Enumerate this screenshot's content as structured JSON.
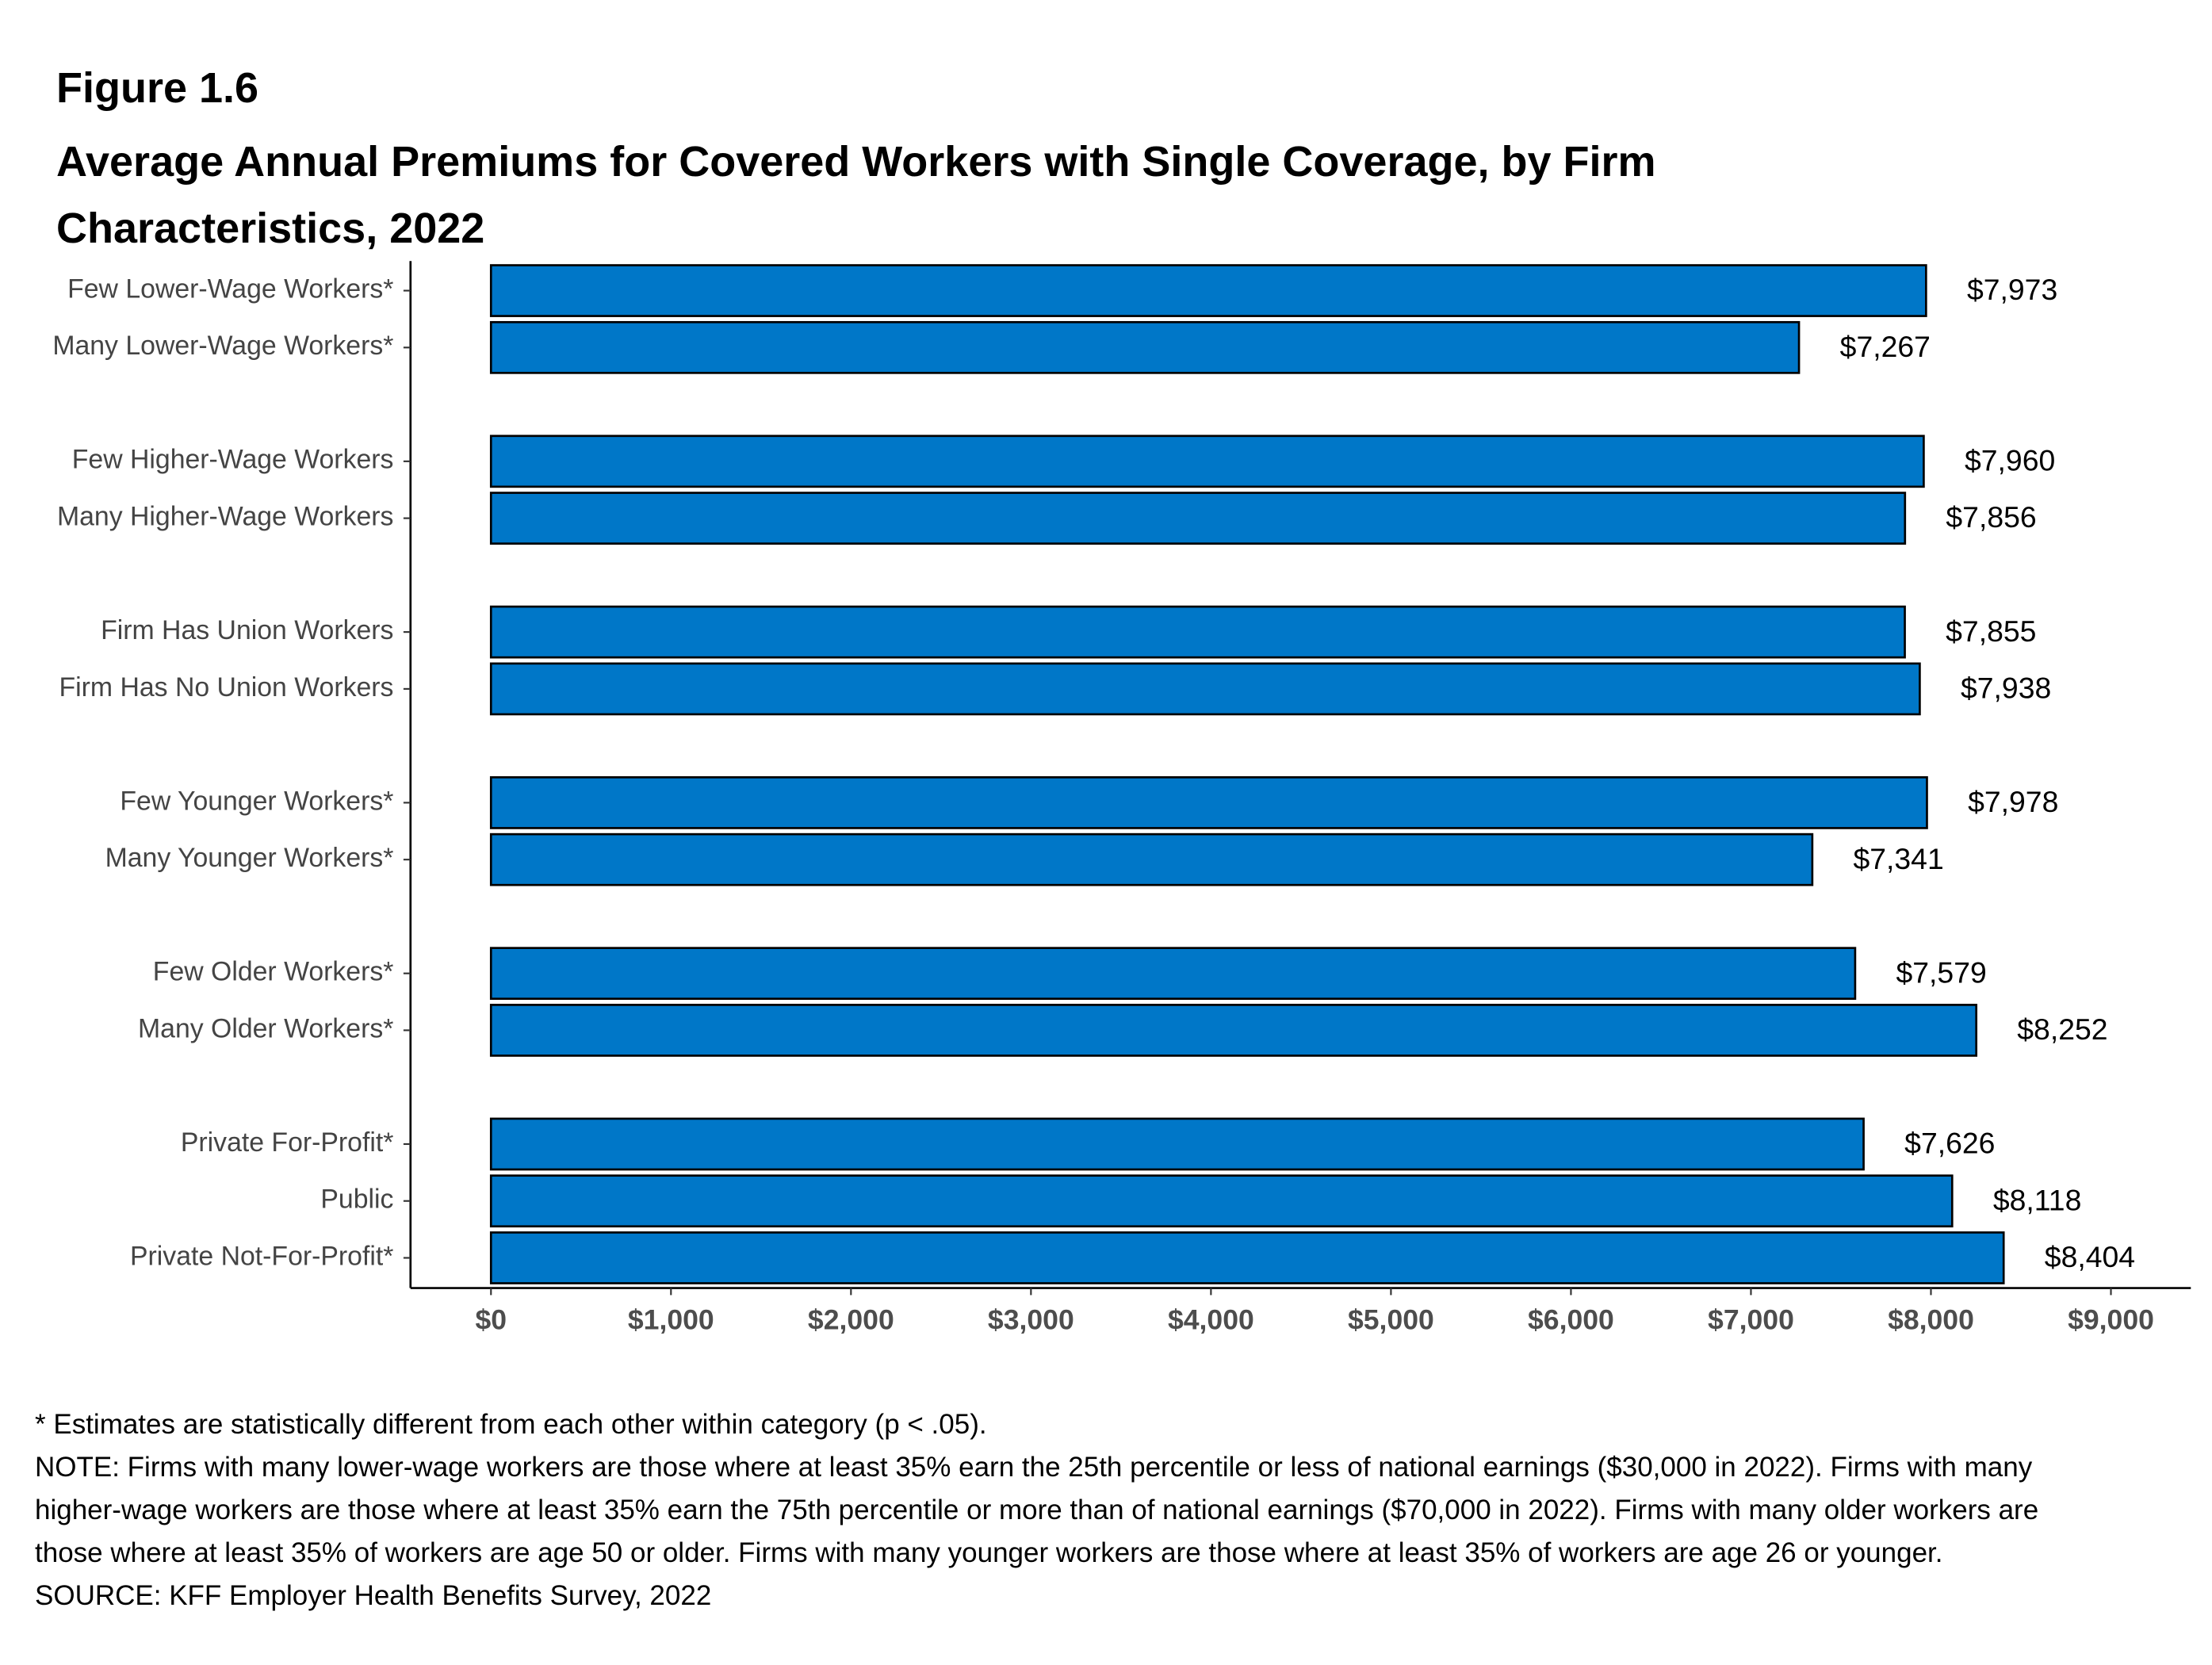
{
  "figure_label": "Figure 1.6",
  "chart_data": {
    "type": "bar",
    "orientation": "horizontal",
    "title": "Average Annual Premiums for Covered Workers with Single Coverage, by Firm Characteristics, 2022",
    "categories": [
      "Few Lower-Wage Workers*",
      "Many Lower-Wage Workers*",
      null,
      "Few Higher-Wage Workers",
      "Many Higher-Wage Workers",
      null,
      "Firm Has Union Workers",
      "Firm Has No Union Workers",
      null,
      "Few Younger Workers*",
      "Many Younger Workers*",
      null,
      "Few Older Workers*",
      "Many Older Workers*",
      null,
      "Private For-Profit*",
      "Public",
      "Private Not-For-Profit*"
    ],
    "values": [
      7973,
      7267,
      null,
      7960,
      7856,
      null,
      7855,
      7938,
      null,
      7978,
      7341,
      null,
      7579,
      8252,
      null,
      7626,
      8118,
      8404
    ],
    "value_labels": [
      "$7,973",
      "$7,267",
      null,
      "$7,960",
      "$7,856",
      null,
      "$7,855",
      "$7,938",
      null,
      "$7,978",
      "$7,341",
      null,
      "$7,579",
      "$8,252",
      null,
      "$7,626",
      "$8,118",
      "$8,404"
    ],
    "color": "#0077c8",
    "xlim": [
      -447,
      9444
    ],
    "xticks": [
      {
        "value": 0,
        "label": "$0"
      },
      {
        "value": 1000,
        "label": "$1,000"
      },
      {
        "value": 2000,
        "label": "$2,000"
      },
      {
        "value": 3000,
        "label": "$3,000"
      },
      {
        "value": 4000,
        "label": "$4,000"
      },
      {
        "value": 5000,
        "label": "$5,000"
      },
      {
        "value": 6000,
        "label": "$6,000"
      },
      {
        "value": 7000,
        "label": "$7,000"
      },
      {
        "value": 8000,
        "label": "$8,000"
      },
      {
        "value": 9000,
        "label": "$9,000"
      }
    ],
    "grid": false
  },
  "notes": {
    "significance": "* Estimates are statistically different from each other within category (p < .05).",
    "note": "NOTE: Firms with many lower-wage workers are those where at least 35% earn the 25th percentile or less of national earnings ($30,000 in 2022). Firms with many higher-wage workers are those where at least 35% earn the 75th percentile or more than of national earnings ($70,000 in 2022). Firms with many older workers are those where at least 35% of workers are age 50 or older. Firms with many younger workers are those where at least 35% of workers are age 26 or younger.",
    "source": "SOURCE: KFF Employer Health Benefits Survey, 2022"
  }
}
